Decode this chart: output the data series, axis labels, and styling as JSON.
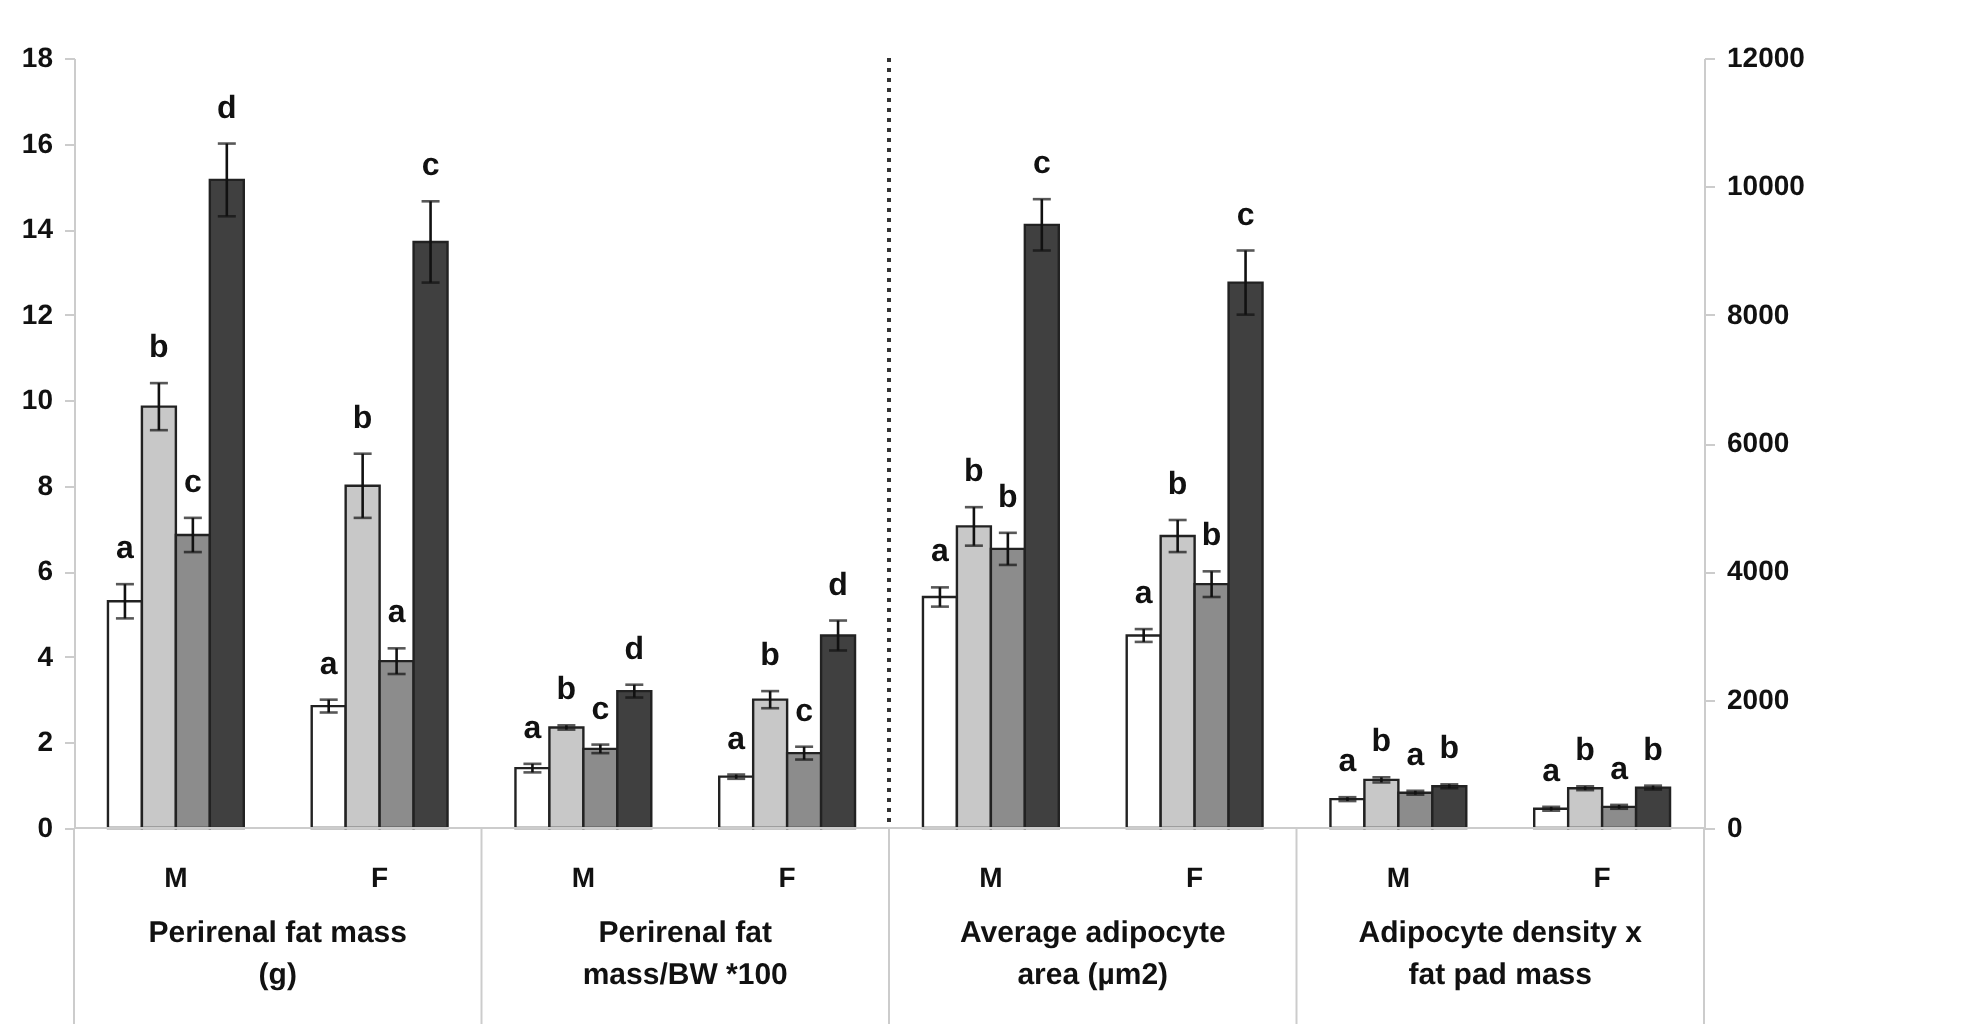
{
  "chart_data": {
    "type": "bar",
    "categories": [
      "M",
      "F",
      "M",
      "F",
      "M",
      "F",
      "M",
      "F"
    ],
    "series": [
      {
        "color": "#ffffff",
        "values": [
          5.3,
          2.85,
          1.4,
          1.2,
          null,
          null,
          null,
          null
        ],
        "errors": [
          0.4,
          0.15,
          0.1,
          0.05,
          null,
          null,
          null,
          null
        ],
        "value_labels": [
          "a",
          "a",
          "a",
          "a",
          null,
          null,
          null,
          null
        ]
      },
      {
        "color": "#c8c8c8",
        "values": [
          9.85,
          8.0,
          2.35,
          3.0,
          null,
          null,
          null,
          null
        ],
        "errors": [
          0.55,
          0.75,
          0.05,
          0.2,
          null,
          null,
          null,
          null
        ],
        "value_labels": [
          "b",
          "b",
          "b",
          "b",
          null,
          null,
          null,
          null
        ]
      },
      {
        "color": "#8c8c8c",
        "values": [
          6.85,
          3.9,
          1.85,
          1.75,
          null,
          null,
          null,
          null
        ],
        "errors": [
          0.4,
          0.3,
          0.1,
          0.15,
          null,
          null,
          null,
          null
        ],
        "value_labels": [
          "c",
          "a",
          "c",
          "c",
          null,
          null,
          null,
          null
        ]
      },
      {
        "color": "#404040",
        "values": [
          15.15,
          13.7,
          3.2,
          4.5,
          null,
          null,
          null,
          null
        ],
        "errors": [
          0.85,
          0.95,
          0.15,
          0.35,
          null,
          null,
          null,
          null
        ],
        "value_labels": [
          "d",
          "c",
          "d",
          "d",
          null,
          null,
          null,
          null
        ]
      },
      {
        "color": "#ffffff",
        "axis": "y2",
        "values": [
          null,
          null,
          null,
          null,
          3600,
          3000,
          450,
          300
        ],
        "errors": [
          null,
          null,
          null,
          null,
          150,
          100,
          30,
          30
        ],
        "value_labels": [
          null,
          null,
          null,
          null,
          "a",
          "a",
          "a",
          "a"
        ]
      },
      {
        "color": "#c8c8c8",
        "axis": "y2",
        "values": [
          null,
          null,
          null,
          null,
          4700,
          4550,
          750,
          620
        ],
        "errors": [
          null,
          null,
          null,
          null,
          300,
          250,
          40,
          30
        ],
        "value_labels": [
          null,
          null,
          null,
          null,
          "b",
          "b",
          "b",
          "b"
        ]
      },
      {
        "color": "#8c8c8c",
        "axis": "y2",
        "values": [
          null,
          null,
          null,
          null,
          4350,
          3800,
          550,
          330
        ],
        "errors": [
          null,
          null,
          null,
          null,
          250,
          200,
          30,
          30
        ],
        "value_labels": [
          null,
          null,
          null,
          null,
          "b",
          "b",
          "a",
          "a"
        ]
      },
      {
        "color": "#404040",
        "axis": "y2",
        "values": [
          null,
          null,
          null,
          null,
          9400,
          8500,
          650,
          630
        ],
        "errors": [
          null,
          null,
          null,
          null,
          400,
          500,
          30,
          30
        ],
        "value_labels": [
          null,
          null,
          null,
          null,
          "c",
          "c",
          "b",
          "b"
        ]
      }
    ],
    "ylim": [
      0,
      18
    ],
    "yticks": [
      0,
      2,
      4,
      6,
      8,
      10,
      12,
      14,
      16,
      18
    ],
    "y2lim": [
      0,
      12000
    ],
    "y2ticks": [
      0,
      2000,
      4000,
      6000,
      8000,
      10000,
      12000
    ],
    "grid": false,
    "annotations": [
      "Perirenal fat mass (g)",
      "Perirenal fat mass/BW *100",
      "Average adipocyte area (µm2)",
      "Adipocyte density x fat pad mass"
    ]
  }
}
